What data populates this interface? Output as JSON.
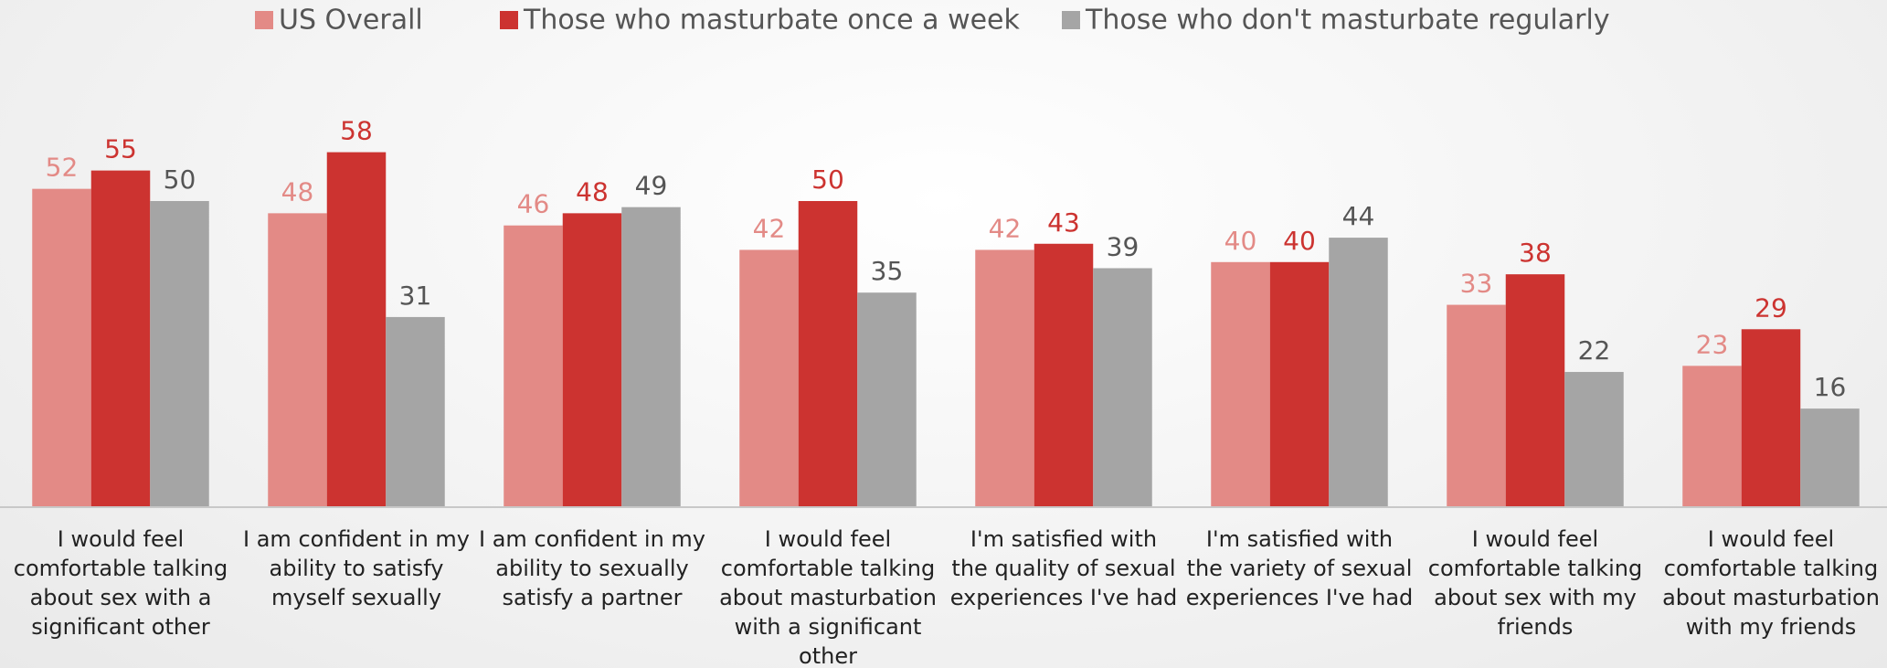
{
  "chart_data": {
    "type": "bar",
    "categories": [
      "I would feel comfortable talking about sex with a significant other",
      "I am confident in my ability to satisfy myself sexually",
      "I am confident in my ability to sexually satisfy a partner",
      "I would feel comfortable talking about masturbation with a significant other",
      "I'm satisfied with the quality of sexual experiences I've had",
      "I'm satisfied with the variety of sexual experiences I've had",
      "I would feel comfortable talking about sex with my friends",
      "I would feel comfortable talking about masturbation with my friends"
    ],
    "series": [
      {
        "name": "US Overall",
        "color": "#e38a86",
        "values": [
          52,
          48,
          46,
          42,
          42,
          40,
          33,
          23
        ]
      },
      {
        "name": "Those who masturbate once a week",
        "color": "#cc3330",
        "values": [
          55,
          58,
          48,
          50,
          43,
          40,
          38,
          29
        ]
      },
      {
        "name": "Those who don't masturbate regularly",
        "color": "#a5a5a5",
        "values": [
          50,
          31,
          49,
          35,
          39,
          44,
          22,
          16
        ]
      }
    ],
    "legend": "top"
  }
}
